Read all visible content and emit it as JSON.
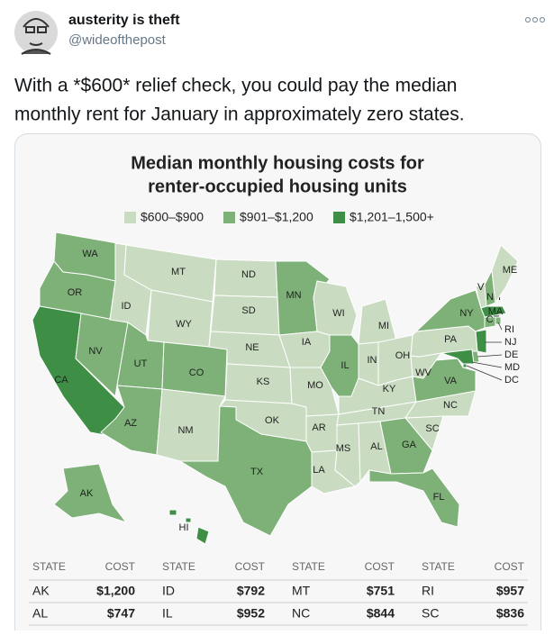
{
  "tweet": {
    "name": "austerity is theft",
    "handle": "@wideofthepost",
    "text": [
      "With a *$600* relief check, you could pay the median",
      "monthly rent for January in approximately zero states."
    ]
  },
  "chart_data": {
    "type": "choropleth",
    "title": [
      "Median monthly housing costs for",
      "renter-occupied housing units"
    ],
    "legend": [
      {
        "label": "$600–$900",
        "color": "#c9dcc2"
      },
      {
        "label": "$901–$1,200",
        "color": "#7db178"
      },
      {
        "label": "$1,201–1,500+",
        "color": "#3f8e45"
      }
    ],
    "states": [
      {
        "name": "WA",
        "color": "#7db178"
      },
      {
        "name": "OR",
        "color": "#7db178"
      },
      {
        "name": "CA",
        "color": "#3f8e45"
      },
      {
        "name": "NV",
        "color": "#7db178"
      },
      {
        "name": "ID",
        "color": "#c9dcc2"
      },
      {
        "name": "MT",
        "color": "#c9dcc2"
      },
      {
        "name": "WY",
        "color": "#c9dcc2"
      },
      {
        "name": "UT",
        "color": "#7db178"
      },
      {
        "name": "CO",
        "color": "#7db178"
      },
      {
        "name": "AZ",
        "color": "#7db178"
      },
      {
        "name": "NM",
        "color": "#c9dcc2"
      },
      {
        "name": "ND",
        "color": "#c9dcc2"
      },
      {
        "name": "SD",
        "color": "#c9dcc2"
      },
      {
        "name": "NE",
        "color": "#c9dcc2"
      },
      {
        "name": "KS",
        "color": "#c9dcc2"
      },
      {
        "name": "OK",
        "color": "#c9dcc2"
      },
      {
        "name": "TX",
        "color": "#7db178"
      },
      {
        "name": "MN",
        "color": "#7db178"
      },
      {
        "name": "IA",
        "color": "#c9dcc2"
      },
      {
        "name": "MO",
        "color": "#c9dcc2"
      },
      {
        "name": "AR",
        "color": "#c9dcc2"
      },
      {
        "name": "LA",
        "color": "#c9dcc2"
      },
      {
        "name": "WI",
        "color": "#c9dcc2"
      },
      {
        "name": "IL",
        "color": "#7db178"
      },
      {
        "name": "MI",
        "color": "#c9dcc2"
      },
      {
        "name": "IN",
        "color": "#c9dcc2"
      },
      {
        "name": "OH",
        "color": "#c9dcc2"
      },
      {
        "name": "KY",
        "color": "#c9dcc2"
      },
      {
        "name": "TN",
        "color": "#c9dcc2"
      },
      {
        "name": "MS",
        "color": "#c9dcc2"
      },
      {
        "name": "AL",
        "color": "#c9dcc2"
      },
      {
        "name": "GA",
        "color": "#7db178"
      },
      {
        "name": "FL",
        "color": "#7db178"
      },
      {
        "name": "SC",
        "color": "#c9dcc2"
      },
      {
        "name": "NC",
        "color": "#c9dcc2"
      },
      {
        "name": "VA",
        "color": "#7db178"
      },
      {
        "name": "WV",
        "color": "#c9dcc2"
      },
      {
        "name": "PA",
        "color": "#c9dcc2"
      },
      {
        "name": "NY",
        "color": "#7db178"
      },
      {
        "name": "VT",
        "color": "#c9dcc2"
      },
      {
        "name": "NH",
        "color": "#7db178"
      },
      {
        "name": "ME",
        "color": "#c9dcc2"
      },
      {
        "name": "MA",
        "color": "#3f8e45"
      },
      {
        "name": "CT",
        "color": "#7db178"
      },
      {
        "name": "RI",
        "color": "#7db178"
      },
      {
        "name": "NJ",
        "color": "#3f8e45"
      },
      {
        "name": "DE",
        "color": "#7db178"
      },
      {
        "name": "MD",
        "color": "#3f8e45"
      },
      {
        "name": "DC",
        "color": "#3f8e45"
      },
      {
        "name": "AK",
        "color": "#7db178"
      },
      {
        "name": "HI",
        "color": "#3f8e45"
      }
    ]
  },
  "table": {
    "headers": [
      "STATE",
      "COST",
      "STATE",
      "COST",
      "STATE",
      "COST",
      "STATE",
      "COST"
    ],
    "rows": [
      [
        "AK",
        "$1,200",
        "ID",
        "$792",
        "MT",
        "$751",
        "RI",
        "$957"
      ],
      [
        "AL",
        "$747",
        "IL",
        "$952",
        "NC",
        "$844",
        "SC",
        "$836"
      ]
    ]
  }
}
